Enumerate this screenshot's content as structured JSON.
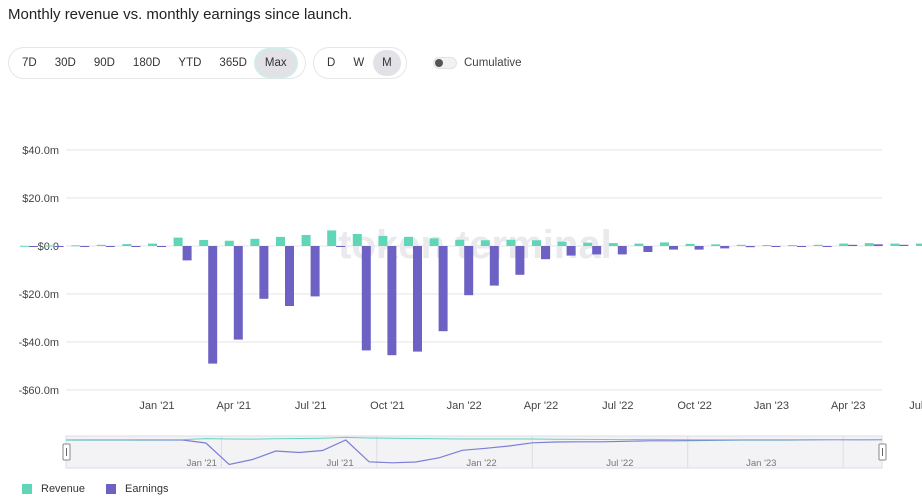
{
  "title": "Monthly revenue vs. monthly earnings since launch.",
  "range_buttons": [
    "7D",
    "30D",
    "90D",
    "180D",
    "YTD",
    "365D",
    "Max"
  ],
  "active_range": "Max",
  "granularity_buttons": [
    "D",
    "W",
    "M"
  ],
  "active_granularity": "M",
  "cumulative_label": "Cumulative",
  "cumulative_on": false,
  "watermark": "token terminal",
  "colors": {
    "revenue": "#5fd6b8",
    "earnings": "#6d62c4",
    "grid": "#e5e5e5",
    "navigator_line": "#7b7fd6"
  },
  "legend": {
    "revenue": "Revenue",
    "earnings": "Earnings"
  },
  "chart_data": {
    "type": "bar",
    "y_tick_labels": [
      "$40.0m",
      "$20.0m",
      "$0.0",
      "-$20.0m",
      "-$40.0m",
      "-$60.0m"
    ],
    "y_ticks": [
      40,
      20,
      0,
      -20,
      -40,
      -60
    ],
    "ylim": [
      -60,
      40
    ],
    "x_tick_labels": [
      "Jan '21",
      "Apr '21",
      "Jul '21",
      "Oct '21",
      "Jan '22",
      "Apr '22",
      "Jul '22",
      "Oct '22",
      "Jan '23",
      "Apr '23",
      "Jul '23"
    ],
    "x_tick_months": [
      5,
      8,
      11,
      14,
      17,
      20,
      23,
      26,
      29,
      32,
      35
    ],
    "categories": [
      "Aug '20",
      "Sep '20",
      "Oct '20",
      "Nov '20",
      "Dec '20",
      "Jan '21",
      "Feb '21",
      "Mar '21",
      "Apr '21",
      "May '21",
      "Jun '21",
      "Jul '21",
      "Aug '21",
      "Sep '21",
      "Oct '21",
      "Nov '21",
      "Dec '21",
      "Jan '22",
      "Feb '22",
      "Mar '22",
      "Apr '22",
      "May '22",
      "Jun '22",
      "Jul '22",
      "Aug '22",
      "Sep '22",
      "Oct '22",
      "Nov '22",
      "Dec '22",
      "Jan '23",
      "Feb '23",
      "Mar '23",
      "Apr '23",
      "May '23",
      "Jun '23",
      "Jul '23"
    ],
    "series": [
      {
        "name": "Revenue",
        "values": [
          0.1,
          0.2,
          0.3,
          0.5,
          0.8,
          1.0,
          3.5,
          2.5,
          2.2,
          3.0,
          3.8,
          4.6,
          6.5,
          5.0,
          4.2,
          3.8,
          3.2,
          2.6,
          2.4,
          2.6,
          2.4,
          1.8,
          1.4,
          1.2,
          1.0,
          1.5,
          0.9,
          0.7,
          0.5,
          0.4,
          0.4,
          0.5,
          1.0,
          1.2,
          1.0,
          1.0
        ]
      },
      {
        "name": "Earnings",
        "values": [
          0.0,
          0.0,
          0.0,
          0.0,
          0.0,
          0.0,
          -6.0,
          -49.0,
          -39.0,
          -22.0,
          -25.0,
          -21.0,
          0.0,
          -43.5,
          -45.5,
          -44.0,
          -35.5,
          -20.5,
          -16.5,
          -12.0,
          -5.5,
          -4.0,
          -3.5,
          -3.5,
          -2.5,
          -1.5,
          -1.5,
          -1.0,
          -0.5,
          0.0,
          0.0,
          0.0,
          0.5,
          0.7,
          0.5,
          0.8
        ]
      }
    ],
    "navigator_labels": [
      "Jan '21",
      "Jul '21",
      "Jan '22",
      "Jul '22",
      "Jan '23"
    ]
  }
}
